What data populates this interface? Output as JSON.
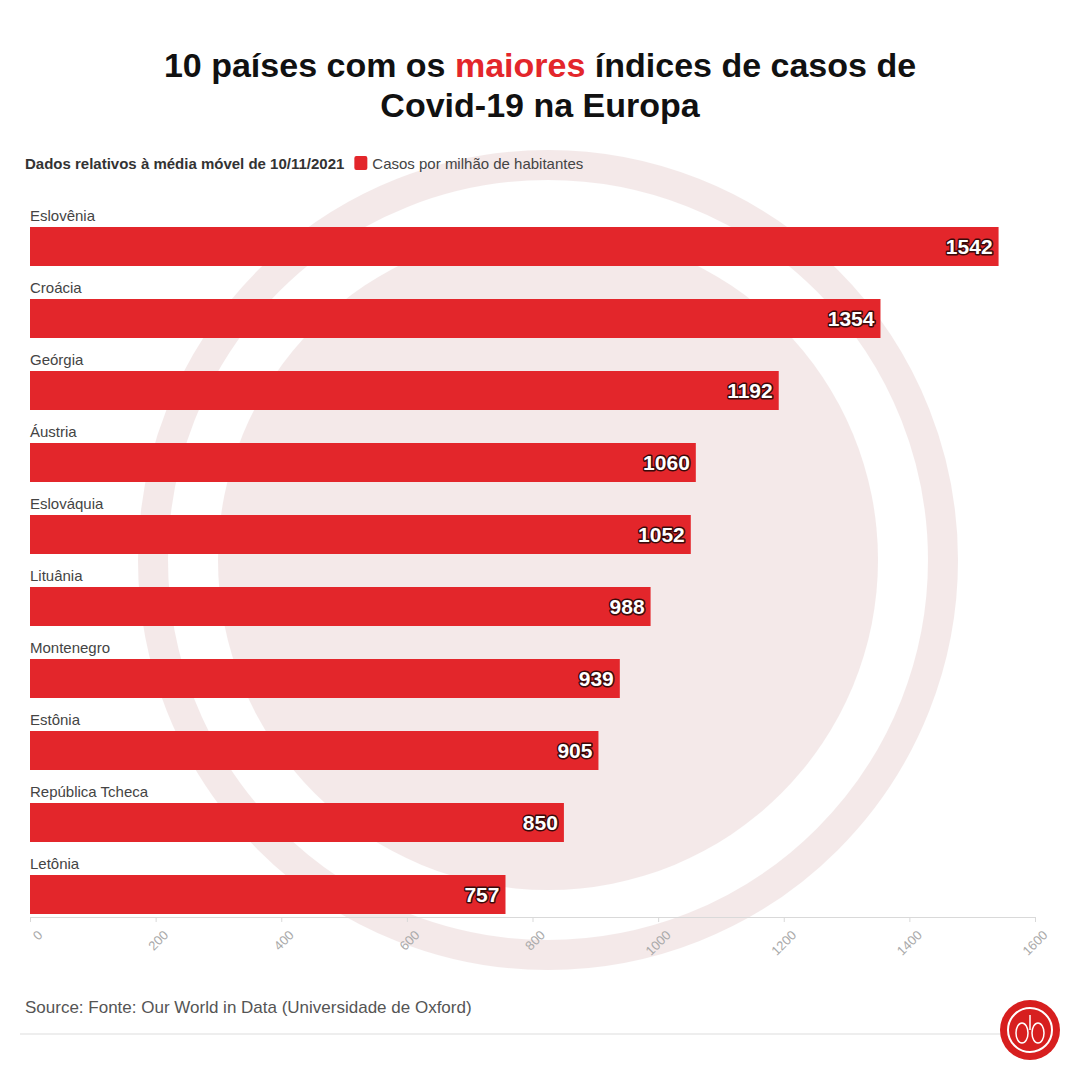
{
  "chart_data": {
    "type": "bar",
    "orientation": "horizontal",
    "title": [
      "10 países com os ",
      "maiores",
      " índices de casos de",
      "Covid-19 na Europa"
    ],
    "subtitle": "Dados relativos à média móvel de 10/11/2021",
    "source": "Source: Fonte: Our World in Data (Universidade de Oxford)",
    "categories": [
      "Eslovênia",
      "Croácia",
      "Geórgia",
      "Áustria",
      "Eslováquia",
      "Lituânia",
      "Montenegro",
      "Estônia",
      "República Tcheca",
      "Letônia"
    ],
    "series": [
      {
        "name": "Casos por milhão de habitantes",
        "color": "#e3262b",
        "values": [
          1542,
          1354,
          1192,
          1060,
          1052,
          988,
          939,
          905,
          850,
          757
        ]
      }
    ],
    "xlim": [
      0,
      1600
    ],
    "xticks": [
      0,
      200,
      400,
      600,
      800,
      1000,
      1200,
      1400,
      1600
    ],
    "grid": false,
    "legend": "top-left",
    "data_labels": true
  }
}
